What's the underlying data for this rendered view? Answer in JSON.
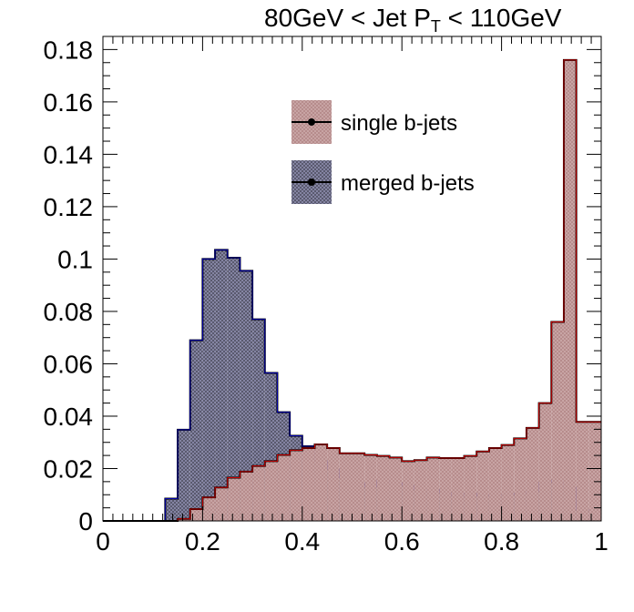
{
  "chart_data": {
    "type": "histogram",
    "title": {
      "prefix": "80GeV < Jet P",
      "sub": "T",
      "suffix": " < 110GeV"
    },
    "xlabel": "",
    "ylabel": "",
    "xlim": [
      0,
      1
    ],
    "ylim": [
      0,
      0.185
    ],
    "x_ticks": [
      "0",
      "0.2",
      "0.4",
      "0.6",
      "0.8",
      "1"
    ],
    "y_ticks": [
      "0",
      "0.02",
      "0.04",
      "0.06",
      "0.08",
      "0.1",
      "0.12",
      "0.14",
      "0.16",
      "0.18"
    ],
    "bin_width": 0.025,
    "bin_edges_start": 0,
    "legend_position": "top-center",
    "series": [
      {
        "name": "merged b-jets",
        "color": "#0000aa",
        "fill": "#8a8aaa",
        "values": [
          0,
          0,
          0,
          0,
          0,
          0.0085,
          0.0348,
          0.069,
          0.1,
          0.1035,
          0.1005,
          0.0955,
          0.077,
          0.0565,
          0.0415,
          0.0325,
          0.0285,
          0.023,
          0.0198,
          0.0165,
          0.0145,
          0.013,
          0.0155,
          0.0145,
          0.0135,
          0.012,
          0.012,
          0.0108,
          0.0095,
          0.0105,
          0.0095,
          0.01,
          0.01,
          0.0105,
          0.0112,
          0.0148,
          0.0155,
          0.0128,
          0.0042,
          0.0042
        ]
      },
      {
        "name": "single b-jets",
        "color": "#cc0000",
        "fill": "#c8a4a4",
        "values": [
          0,
          0,
          0,
          0,
          0,
          0,
          0.0008,
          0.0045,
          0.009,
          0.0128,
          0.0165,
          0.0188,
          0.021,
          0.0228,
          0.0252,
          0.027,
          0.0278,
          0.0292,
          0.0278,
          0.0258,
          0.0258,
          0.0252,
          0.0248,
          0.0242,
          0.0228,
          0.0232,
          0.0242,
          0.024,
          0.024,
          0.0248,
          0.0265,
          0.0278,
          0.029,
          0.0315,
          0.0355,
          0.045,
          0.076,
          0.176,
          0.0378,
          0.0378
        ]
      }
    ]
  }
}
